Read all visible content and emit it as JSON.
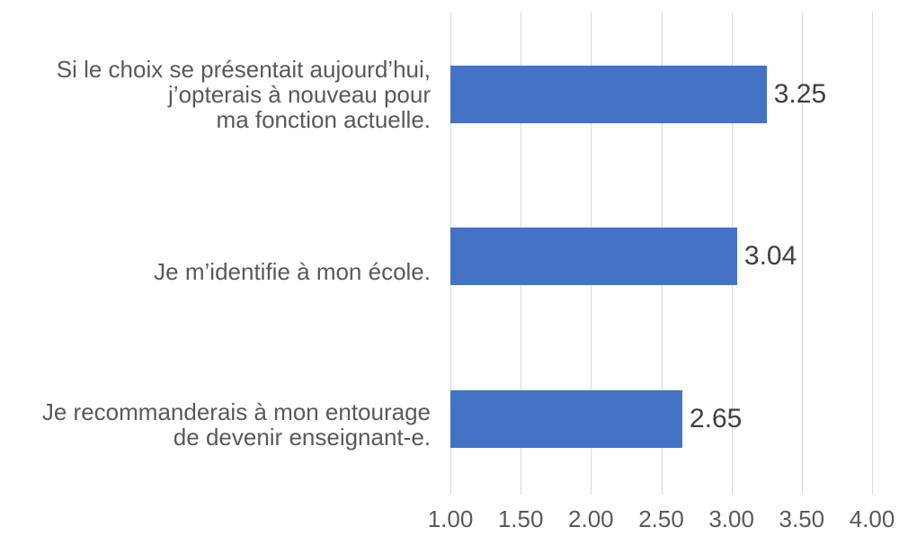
{
  "chart_data": {
    "type": "bar",
    "orientation": "horizontal",
    "title": "",
    "categories": [
      "Si le choix se présentait aujourd’hui,\nj’opterais à nouveau pour\nma fonction actuelle.",
      "Je m’identifie à mon école.",
      "Je recommanderais à mon entourage\nde devenir enseignant-e."
    ],
    "values": [
      3.25,
      3.04,
      2.65
    ],
    "value_labels": [
      "3.25",
      "3.04",
      "2.65"
    ],
    "x_ticks": [
      "1.00",
      "1.50",
      "2.00",
      "2.50",
      "3.00",
      "3.50",
      "4.00"
    ],
    "x_tick_values": [
      1.0,
      1.5,
      2.0,
      2.5,
      3.0,
      3.5,
      4.0
    ],
    "xlim": [
      1.0,
      4.0
    ],
    "xlabel": "",
    "ylabel": "",
    "grid": true,
    "legend": false,
    "bar_color": "#4472C4",
    "grid_color": "#D9D9D9",
    "axis_text_color": "#595959",
    "value_label_color": "#404040"
  }
}
